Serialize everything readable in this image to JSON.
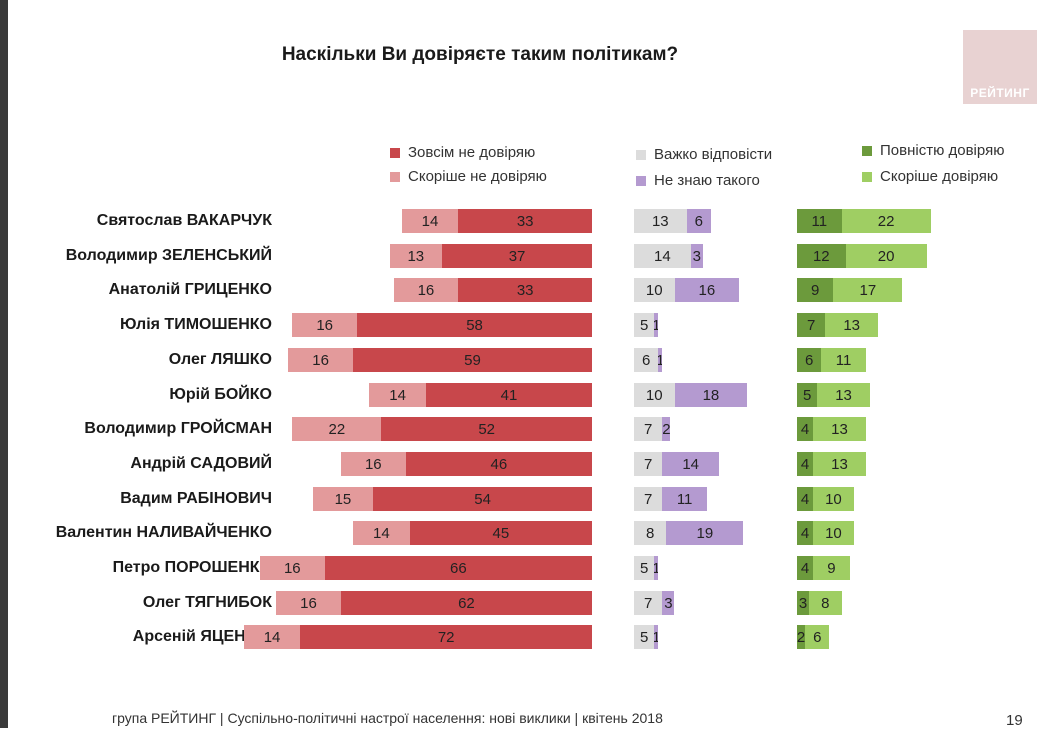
{
  "title": "Наскільки Ви довіряєте таким політикам?",
  "logo_text": "РЕЙТИНГ",
  "footer": "група РЕЙТИНГ  |  Суспільно-політичні настрої населення: нові виклики  |  квітень 2018",
  "page_number": "19",
  "legend": {
    "no_trust": "Зовсім не довіряю",
    "rather_no": "Скоріше не довіряю",
    "hard": "Важко відповісти",
    "unknown": "Не знаю такого",
    "full": "Повністю довіряю",
    "rather": "Скоріше довіряю"
  },
  "colors": {
    "no_trust": "#c8474b",
    "rather_no": "#e39a9b",
    "hard": "#dcdcdc",
    "unknown": "#b49ad0",
    "full": "#6c9a3c",
    "rather": "#9fce63"
  },
  "chart_data": {
    "type": "bar",
    "title": "Наскільки Ви довіряєте таким політикам?",
    "categories": [
      "Святослав ВАКАРЧУК",
      "Володимир ЗЕЛЕНСЬКИЙ",
      "Анатолій ГРИЦЕНКО",
      "Юлія ТИМОШЕНКО",
      "Олег ЛЯШКО",
      "Юрій БОЙКО",
      "Володимир ГРОЙСМАН",
      "Андрій САДОВИЙ",
      "Вадим РАБІНОВИЧ",
      "Валентин НАЛИВАЙЧЕНКО",
      "Петро ПОРОШЕНКО",
      "Олег ТЯГНИБОК",
      "Арсеній ЯЦЕНЮК"
    ],
    "series": [
      {
        "name": "Зовсім не довіряю",
        "values": [
          33,
          37,
          33,
          58,
          59,
          41,
          52,
          46,
          54,
          45,
          66,
          62,
          72
        ]
      },
      {
        "name": "Скоріше не довіряю",
        "values": [
          14,
          13,
          16,
          16,
          16,
          14,
          22,
          16,
          15,
          14,
          16,
          16,
          14
        ]
      },
      {
        "name": "Важко відповісти",
        "values": [
          13,
          14,
          10,
          5,
          6,
          10,
          7,
          7,
          7,
          8,
          5,
          7,
          5
        ]
      },
      {
        "name": "Не знаю такого",
        "values": [
          6,
          3,
          16,
          1,
          1,
          18,
          2,
          14,
          11,
          19,
          1,
          3,
          1
        ]
      },
      {
        "name": "Повністю довіряю",
        "values": [
          11,
          12,
          9,
          7,
          6,
          5,
          4,
          4,
          4,
          4,
          4,
          3,
          2
        ]
      },
      {
        "name": "Скоріше довіряю",
        "values": [
          22,
          20,
          17,
          13,
          11,
          13,
          13,
          13,
          10,
          10,
          9,
          8,
          6
        ]
      }
    ],
    "legend_position": "top",
    "grid": false
  }
}
